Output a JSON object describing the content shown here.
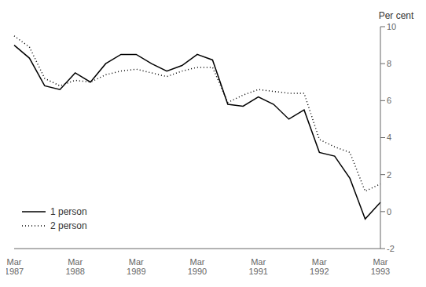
{
  "chart_data": {
    "type": "line",
    "ylabel": "Per cent",
    "categories": [
      "Mar\n1987",
      null,
      null,
      null,
      "Mar\n1988",
      null,
      null,
      null,
      "Mar\n1989",
      null,
      null,
      null,
      "Mar\n1990",
      null,
      null,
      null,
      "Mar\n1991",
      null,
      null,
      null,
      "Mar\n1992",
      null,
      null,
      null,
      "Mar\n1993"
    ],
    "series": [
      {
        "name": "1 person",
        "color": "#000000",
        "line_style": "solid",
        "values": [
          9.0,
          8.3,
          6.8,
          6.6,
          7.5,
          7.0,
          8.0,
          8.5,
          8.5,
          8.0,
          7.6,
          7.9,
          8.5,
          8.2,
          5.8,
          5.7,
          6.2,
          5.8,
          5.0,
          5.5,
          3.2,
          3.0,
          1.8,
          -0.4,
          0.5
        ]
      },
      {
        "name": "2 person",
        "color": "#000000",
        "line_style": "dotted",
        "values": [
          9.5,
          8.9,
          7.2,
          6.8,
          7.1,
          7.0,
          7.4,
          7.6,
          7.7,
          7.5,
          7.3,
          7.6,
          7.8,
          7.8,
          5.9,
          6.3,
          6.6,
          6.5,
          6.4,
          6.4,
          3.9,
          3.5,
          3.2,
          1.1,
          1.5
        ]
      }
    ],
    "ylim": [
      -2,
      10
    ],
    "yticks": [
      -2,
      0,
      2,
      4,
      6,
      8,
      10
    ],
    "grid": false,
    "legend": "lower left"
  }
}
